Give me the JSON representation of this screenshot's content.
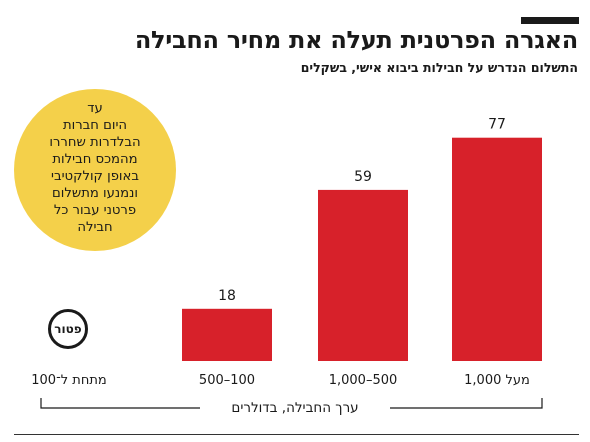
{
  "title": "האגרה הפרטנית תעלה את מחיר החבילה",
  "subtitle": "התשלום הנדרש על חבילות ביבוא אישי, בשקלים",
  "callout": {
    "lines": [
      "עד",
      "היום חברות",
      "הבלדרות שחררו",
      "מהמכס חבילות",
      "באופן קולקטיבי",
      "ונמנעו מתשלום",
      "פרטני עבור כל",
      "חבילה"
    ]
  },
  "exempt_label": "פטור",
  "axis_title": "ערך החבילה, בדולרים",
  "colors": {
    "bar": "#d7212a",
    "callout": "#f4d04a",
    "text": "#1a1a1a"
  },
  "chart_data": {
    "type": "bar",
    "categories": [
      "מתחת ל־100",
      "500–100",
      "1,000–500",
      "מעל 1,000"
    ],
    "values": [
      0,
      18,
      59,
      77
    ],
    "value_labels": [
      "פטור",
      "18",
      "59",
      "77"
    ],
    "title": "האגרה הפרטנית תעלה את מחיר החבילה",
    "subtitle": "התשלום הנדרש על חבילות ביבוא אישי, בשקלים",
    "xlabel": "ערך החבילה, בדולרים",
    "ylabel": "",
    "ylim": [
      0,
      80
    ],
    "grid": false,
    "legend": "none"
  }
}
